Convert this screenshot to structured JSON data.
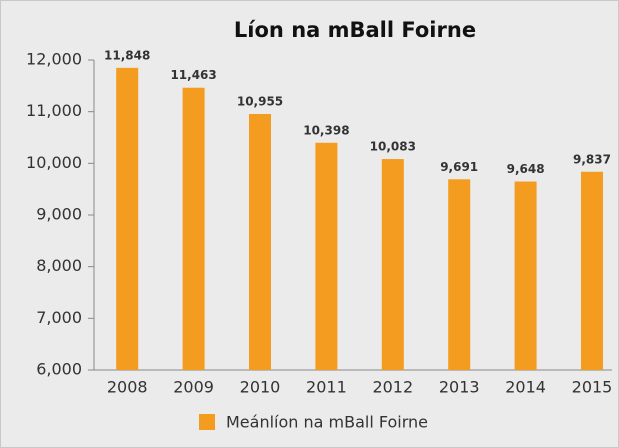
{
  "chart_data": {
    "type": "bar",
    "title": "Líon na mBall Foirne",
    "categories": [
      "2008",
      "2009",
      "2010",
      "2011",
      "2012",
      "2013",
      "2014",
      "2015"
    ],
    "series": [
      {
        "name": "Meánlíon na mBall Foirne",
        "color": "#f39c1f",
        "values": [
          11848,
          11463,
          10955,
          10398,
          10083,
          9691,
          9648,
          9837
        ],
        "value_labels": [
          "11,848",
          "11,463",
          "10,955",
          "10,398",
          "10,083",
          "9,691",
          "9,648",
          "9,837"
        ]
      }
    ],
    "ylim": [
      6000,
      12000
    ],
    "yticks": [
      {
        "value": 6000,
        "label": "6,000"
      },
      {
        "value": 7000,
        "label": "7,000"
      },
      {
        "value": 8000,
        "label": "8,000"
      },
      {
        "value": 9000,
        "label": "9,000"
      },
      {
        "value": 10000,
        "label": "10,000"
      },
      {
        "value": 11000,
        "label": "11,000"
      },
      {
        "value": 12000,
        "label": "12,000"
      }
    ],
    "grid": false,
    "legend": "bottom"
  }
}
